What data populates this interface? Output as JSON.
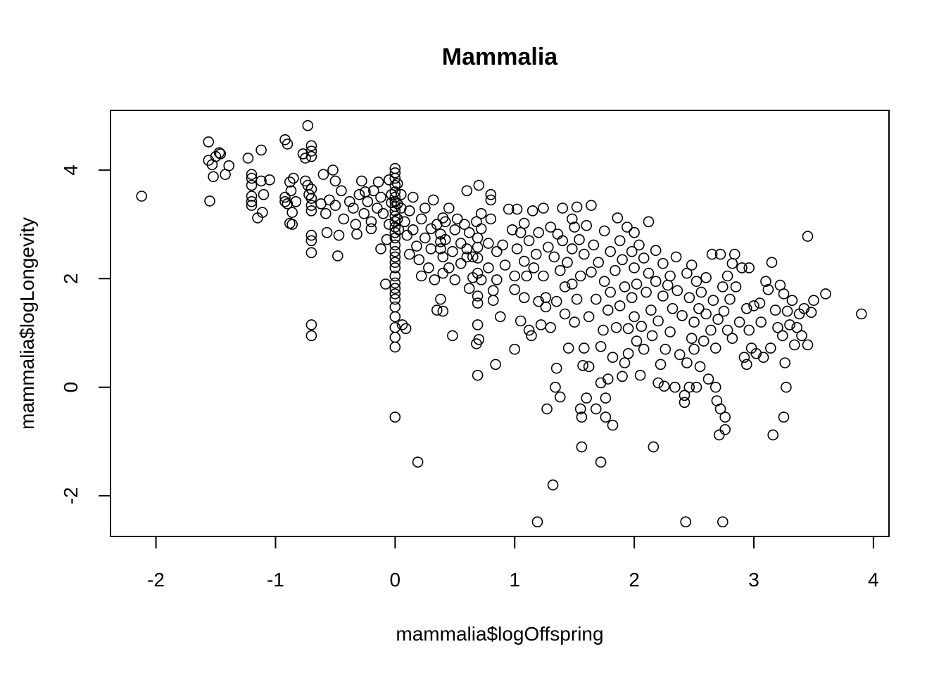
{
  "chart_data": {
    "type": "scatter",
    "title": "Mammalia",
    "xlabel": "mammalia$logOffspring",
    "ylabel": "mammalia$logLongevity",
    "xlim": [
      -2.38,
      4.13
    ],
    "ylim": [
      -2.75,
      5.1
    ],
    "xticks": [
      -2,
      -1,
      0,
      1,
      2,
      3,
      4
    ],
    "yticks": [
      -2,
      0,
      2,
      4
    ],
    "grid": false,
    "legend": "none",
    "marker": "open-circle",
    "color": "#000000",
    "points": [
      [
        -2.12,
        3.52
      ],
      [
        -1.56,
        4.52
      ],
      [
        -1.55,
        3.43
      ],
      [
        -1.56,
        4.18
      ],
      [
        -1.53,
        4.1
      ],
      [
        -1.5,
        4.25
      ],
      [
        -1.47,
        4.32
      ],
      [
        -1.46,
        4.3
      ],
      [
        -1.52,
        3.88
      ],
      [
        -1.42,
        3.92
      ],
      [
        -1.39,
        4.08
      ],
      [
        -1.23,
        4.22
      ],
      [
        -1.2,
        3.92
      ],
      [
        -1.2,
        3.85
      ],
      [
        -1.2,
        3.72
      ],
      [
        -1.2,
        3.52
      ],
      [
        -1.2,
        3.42
      ],
      [
        -1.2,
        3.35
      ],
      [
        -1.15,
        3.12
      ],
      [
        -1.12,
        4.37
      ],
      [
        -1.12,
        3.8
      ],
      [
        -1.1,
        3.55
      ],
      [
        -1.11,
        3.22
      ],
      [
        -1.05,
        3.82
      ],
      [
        -0.92,
        4.56
      ],
      [
        -0.9,
        4.48
      ],
      [
        -0.92,
        3.5
      ],
      [
        -0.92,
        3.42
      ],
      [
        -0.9,
        3.38
      ],
      [
        -0.88,
        3.78
      ],
      [
        -0.87,
        3.62
      ],
      [
        -0.86,
        3.22
      ],
      [
        -0.88,
        3.02
      ],
      [
        -0.86,
        3.0
      ],
      [
        -0.85,
        3.85
      ],
      [
        -0.83,
        3.42
      ],
      [
        -0.77,
        4.3
      ],
      [
        -0.75,
        4.22
      ],
      [
        -0.75,
        3.8
      ],
      [
        -0.73,
        4.82
      ],
      [
        -0.73,
        3.72
      ],
      [
        -0.72,
        3.55
      ],
      [
        -0.7,
        4.45
      ],
      [
        -0.7,
        4.35
      ],
      [
        -0.7,
        4.25
      ],
      [
        -0.7,
        3.65
      ],
      [
        -0.7,
        3.48
      ],
      [
        -0.7,
        3.35
      ],
      [
        -0.7,
        3.25
      ],
      [
        -0.7,
        2.8
      ],
      [
        -0.7,
        2.7
      ],
      [
        -0.7,
        2.48
      ],
      [
        -0.7,
        1.15
      ],
      [
        -0.7,
        0.95
      ],
      [
        -0.62,
        3.38
      ],
      [
        -0.6,
        3.92
      ],
      [
        -0.58,
        3.2
      ],
      [
        -0.57,
        2.85
      ],
      [
        -0.55,
        3.45
      ],
      [
        -0.52,
        4.0
      ],
      [
        -0.5,
        3.8
      ],
      [
        -0.5,
        3.35
      ],
      [
        -0.48,
        2.42
      ],
      [
        -0.47,
        2.8
      ],
      [
        -0.45,
        3.62
      ],
      [
        -0.43,
        3.1
      ],
      [
        -0.38,
        3.42
      ],
      [
        -0.35,
        3.3
      ],
      [
        -0.33,
        3.0
      ],
      [
        -0.32,
        2.82
      ],
      [
        -0.3,
        3.55
      ],
      [
        -0.28,
        3.8
      ],
      [
        -0.26,
        3.2
      ],
      [
        -0.25,
        3.6
      ],
      [
        -0.23,
        3.42
      ],
      [
        -0.2,
        3.05
      ],
      [
        -0.2,
        2.92
      ],
      [
        -0.18,
        3.62
      ],
      [
        -0.15,
        3.3
      ],
      [
        -0.14,
        3.78
      ],
      [
        -0.12,
        3.5
      ],
      [
        -0.12,
        2.55
      ],
      [
        -0.1,
        3.2
      ],
      [
        -0.08,
        1.9
      ],
      [
        -0.07,
        2.72
      ],
      [
        -0.05,
        3.82
      ],
      [
        -0.05,
        3.0
      ],
      [
        -0.03,
        3.4
      ],
      [
        -0.03,
        3.55
      ],
      [
        0.0,
        4.03
      ],
      [
        0.0,
        3.95
      ],
      [
        0.0,
        3.85
      ],
      [
        0.0,
        3.72
      ],
      [
        0.0,
        3.6
      ],
      [
        0.0,
        3.5
      ],
      [
        0.0,
        3.42
      ],
      [
        0.0,
        3.33
      ],
      [
        0.0,
        3.25
      ],
      [
        0.0,
        3.15
      ],
      [
        0.0,
        3.05
      ],
      [
        0.0,
        2.95
      ],
      [
        0.0,
        2.85
      ],
      [
        0.0,
        2.75
      ],
      [
        0.0,
        2.62
      ],
      [
        0.0,
        2.5
      ],
      [
        0.0,
        2.4
      ],
      [
        0.0,
        2.3
      ],
      [
        0.0,
        2.2
      ],
      [
        0.0,
        2.05
      ],
      [
        0.0,
        1.92
      ],
      [
        0.0,
        1.82
      ],
      [
        0.0,
        1.72
      ],
      [
        0.0,
        1.62
      ],
      [
        0.0,
        1.48
      ],
      [
        0.0,
        1.3
      ],
      [
        0.0,
        1.1
      ],
      [
        0.0,
        0.92
      ],
      [
        0.0,
        0.74
      ],
      [
        0.0,
        -0.55
      ],
      [
        0.02,
        3.75
      ],
      [
        0.02,
        3.38
      ],
      [
        0.02,
        3.1
      ],
      [
        0.03,
        2.9
      ],
      [
        0.05,
        3.3
      ],
      [
        0.05,
        3.55
      ],
      [
        0.06,
        1.15
      ],
      [
        0.08,
        3.05
      ],
      [
        0.09,
        1.08
      ],
      [
        0.1,
        2.8
      ],
      [
        0.12,
        3.25
      ],
      [
        0.12,
        2.45
      ],
      [
        0.15,
        3.5
      ],
      [
        0.15,
        2.9
      ],
      [
        0.18,
        2.6
      ],
      [
        0.19,
        -1.38
      ],
      [
        0.2,
        2.35
      ],
      [
        0.22,
        3.1
      ],
      [
        0.22,
        2.05
      ],
      [
        0.25,
        3.3
      ],
      [
        0.25,
        2.75
      ],
      [
        0.28,
        2.2
      ],
      [
        0.3,
        2.92
      ],
      [
        0.3,
        2.55
      ],
      [
        0.32,
        3.45
      ],
      [
        0.33,
        1.98
      ],
      [
        0.35,
        3.0
      ],
      [
        0.35,
        1.42
      ],
      [
        0.38,
        2.82
      ],
      [
        0.38,
        2.68
      ],
      [
        0.38,
        2.55
      ],
      [
        0.38,
        1.62
      ],
      [
        0.4,
        3.12
      ],
      [
        0.4,
        2.4
      ],
      [
        0.4,
        2.1
      ],
      [
        0.4,
        1.4
      ],
      [
        0.42,
        3.05
      ],
      [
        0.42,
        2.72
      ],
      [
        0.45,
        2.2
      ],
      [
        0.45,
        3.3
      ],
      [
        0.48,
        2.5
      ],
      [
        0.48,
        0.95
      ],
      [
        0.5,
        2.9
      ],
      [
        0.5,
        1.98
      ],
      [
        0.52,
        3.1
      ],
      [
        0.55,
        2.65
      ],
      [
        0.55,
        2.28
      ],
      [
        0.58,
        3.0
      ],
      [
        0.6,
        2.55
      ],
      [
        0.6,
        2.4
      ],
      [
        0.6,
        3.62
      ],
      [
        0.62,
        2.85
      ],
      [
        0.62,
        1.82
      ],
      [
        0.65,
        2.4
      ],
      [
        0.65,
        2.02
      ],
      [
        0.68,
        3.05
      ],
      [
        0.68,
        0.8
      ],
      [
        0.69,
        0.22
      ],
      [
        0.69,
        2.75
      ],
      [
        0.69,
        2.58
      ],
      [
        0.69,
        2.38
      ],
      [
        0.69,
        2.1
      ],
      [
        0.69,
        1.68
      ],
      [
        0.69,
        1.55
      ],
      [
        0.69,
        1.15
      ],
      [
        0.7,
        3.72
      ],
      [
        0.7,
        0.88
      ],
      [
        0.72,
        3.2
      ],
      [
        0.72,
        2.92
      ],
      [
        0.72,
        1.98
      ],
      [
        0.78,
        2.65
      ],
      [
        0.78,
        2.2
      ],
      [
        0.8,
        3.55
      ],
      [
        0.8,
        3.45
      ],
      [
        0.8,
        3.1
      ],
      [
        0.82,
        1.78
      ],
      [
        0.82,
        1.6
      ],
      [
        0.84,
        0.42
      ],
      [
        0.85,
        2.5
      ],
      [
        0.85,
        1.98
      ],
      [
        0.88,
        1.3
      ],
      [
        0.9,
        2.62
      ],
      [
        0.92,
        2.25
      ],
      [
        0.95,
        3.28
      ],
      [
        0.98,
        2.9
      ],
      [
        1.0,
        2.05
      ],
      [
        1.0,
        1.8
      ],
      [
        1.0,
        0.7
      ],
      [
        1.02,
        3.28
      ],
      [
        1.02,
        2.55
      ],
      [
        1.05,
        2.85
      ],
      [
        1.05,
        1.22
      ],
      [
        1.08,
        3.02
      ],
      [
        1.08,
        2.32
      ],
      [
        1.08,
        1.65
      ],
      [
        1.1,
        2.05
      ],
      [
        1.12,
        2.7
      ],
      [
        1.12,
        1.05
      ],
      [
        1.14,
        0.95
      ],
      [
        1.15,
        3.25
      ],
      [
        1.16,
        2.2
      ],
      [
        1.18,
        2.45
      ],
      [
        1.19,
        -2.48
      ],
      [
        1.2,
        2.85
      ],
      [
        1.2,
        1.58
      ],
      [
        1.22,
        1.15
      ],
      [
        1.24,
        3.3
      ],
      [
        1.24,
        2.05
      ],
      [
        1.26,
        1.48
      ],
      [
        1.26,
        1.65
      ],
      [
        1.27,
        -0.4
      ],
      [
        1.28,
        2.58
      ],
      [
        1.3,
        2.95
      ],
      [
        1.3,
        1.1
      ],
      [
        1.32,
        -1.8
      ],
      [
        1.33,
        2.4
      ],
      [
        1.34,
        0.0
      ],
      [
        1.35,
        0.35
      ],
      [
        1.35,
        1.58
      ],
      [
        1.36,
        2.82
      ],
      [
        1.38,
        -0.18
      ],
      [
        1.38,
        2.15
      ],
      [
        1.4,
        3.3
      ],
      [
        1.4,
        2.7
      ],
      [
        1.42,
        1.85
      ],
      [
        1.42,
        1.35
      ],
      [
        1.44,
        2.3
      ],
      [
        1.45,
        0.72
      ],
      [
        1.48,
        3.1
      ],
      [
        1.48,
        2.55
      ],
      [
        1.48,
        1.9
      ],
      [
        1.5,
        2.95
      ],
      [
        1.5,
        1.2
      ],
      [
        1.52,
        3.32
      ],
      [
        1.52,
        1.62
      ],
      [
        1.54,
        2.72
      ],
      [
        1.55,
        -0.4
      ],
      [
        1.55,
        2.05
      ],
      [
        1.56,
        -1.1
      ],
      [
        1.56,
        -0.55
      ],
      [
        1.57,
        0.4
      ],
      [
        1.58,
        2.45
      ],
      [
        1.58,
        0.72
      ],
      [
        1.6,
        2.98
      ],
      [
        1.6,
        -0.2
      ],
      [
        1.62,
        0.38
      ],
      [
        1.62,
        1.3
      ],
      [
        1.64,
        3.35
      ],
      [
        1.64,
        2.12
      ],
      [
        1.66,
        2.62
      ],
      [
        1.68,
        -0.4
      ],
      [
        1.68,
        1.62
      ],
      [
        1.7,
        2.3
      ],
      [
        1.72,
        -1.38
      ],
      [
        1.72,
        0.08
      ],
      [
        1.72,
        0.75
      ],
      [
        1.74,
        1.05
      ],
      [
        1.75,
        2.88
      ],
      [
        1.75,
        1.95
      ],
      [
        1.76,
        -0.55
      ],
      [
        1.76,
        -0.2
      ],
      [
        1.78,
        0.15
      ],
      [
        1.78,
        1.42
      ],
      [
        1.8,
        2.5
      ],
      [
        1.8,
        1.75
      ],
      [
        1.82,
        -0.7
      ],
      [
        1.82,
        0.55
      ],
      [
        1.84,
        2.15
      ],
      [
        1.85,
        1.1
      ],
      [
        1.86,
        3.12
      ],
      [
        1.88,
        2.7
      ],
      [
        1.88,
        1.5
      ],
      [
        1.9,
        0.2
      ],
      [
        1.9,
        2.35
      ],
      [
        1.92,
        1.85
      ],
      [
        1.92,
        0.45
      ],
      [
        1.94,
        2.95
      ],
      [
        1.95,
        1.08
      ],
      [
        1.95,
        0.62
      ],
      [
        1.98,
        2.5
      ],
      [
        1.98,
        1.65
      ],
      [
        2.0,
        2.85
      ],
      [
        2.0,
        2.2
      ],
      [
        2.0,
        1.3
      ],
      [
        2.02,
        1.9
      ],
      [
        2.02,
        0.85
      ],
      [
        2.04,
        2.62
      ],
      [
        2.05,
        0.22
      ],
      [
        2.06,
        1.12
      ],
      [
        2.08,
        2.38
      ],
      [
        2.08,
        0.7
      ],
      [
        2.1,
        1.75
      ],
      [
        2.12,
        3.05
      ],
      [
        2.12,
        2.1
      ],
      [
        2.14,
        1.42
      ],
      [
        2.15,
        0.95
      ],
      [
        2.16,
        -1.1
      ],
      [
        2.18,
        2.52
      ],
      [
        2.18,
        1.95
      ],
      [
        2.2,
        1.22
      ],
      [
        2.2,
        0.08
      ],
      [
        2.22,
        0.42
      ],
      [
        2.24,
        2.28
      ],
      [
        2.24,
        1.68
      ],
      [
        2.25,
        0.02
      ],
      [
        2.26,
        0.7
      ],
      [
        2.28,
        1.88
      ],
      [
        2.3,
        2.05
      ],
      [
        2.3,
        1.02
      ],
      [
        2.32,
        1.45
      ],
      [
        2.34,
        0.0
      ],
      [
        2.35,
        2.4
      ],
      [
        2.36,
        1.78
      ],
      [
        2.38,
        0.6
      ],
      [
        2.4,
        1.32
      ],
      [
        2.42,
        -0.28
      ],
      [
        2.42,
        -0.15
      ],
      [
        2.43,
        -2.48
      ],
      [
        2.44,
        2.1
      ],
      [
        2.44,
        0.45
      ],
      [
        2.46,
        0.0
      ],
      [
        2.46,
        1.65
      ],
      [
        2.48,
        0.9
      ],
      [
        2.48,
        2.25
      ],
      [
        2.5,
        1.2
      ],
      [
        2.5,
        0.7
      ],
      [
        2.52,
        1.95
      ],
      [
        2.52,
        0.0
      ],
      [
        2.54,
        1.45
      ],
      [
        2.55,
        0.38
      ],
      [
        2.56,
        1.75
      ],
      [
        2.58,
        0.85
      ],
      [
        2.6,
        2.02
      ],
      [
        2.6,
        1.35
      ],
      [
        2.62,
        0.15
      ],
      [
        2.64,
        1.05
      ],
      [
        2.65,
        2.45
      ],
      [
        2.66,
        1.6
      ],
      [
        2.68,
        0.72
      ],
      [
        2.68,
        0.0
      ],
      [
        2.69,
        -0.25
      ],
      [
        2.7,
        1.25
      ],
      [
        2.71,
        -0.88
      ],
      [
        2.72,
        2.45
      ],
      [
        2.72,
        -0.4
      ],
      [
        2.74,
        -2.48
      ],
      [
        2.74,
        1.85
      ],
      [
        2.75,
        1.4
      ],
      [
        2.76,
        -0.55
      ],
      [
        2.76,
        -0.78
      ],
      [
        2.78,
        2.05
      ],
      [
        2.78,
        1.05
      ],
      [
        2.8,
        1.62
      ],
      [
        2.82,
        2.28
      ],
      [
        2.82,
        0.9
      ],
      [
        2.84,
        2.45
      ],
      [
        2.85,
        1.85
      ],
      [
        2.88,
        1.2
      ],
      [
        2.9,
        2.2
      ],
      [
        2.92,
        0.55
      ],
      [
        2.94,
        1.45
      ],
      [
        2.94,
        0.42
      ],
      [
        2.96,
        2.2
      ],
      [
        2.96,
        1.05
      ],
      [
        2.98,
        0.72
      ],
      [
        3.0,
        1.5
      ],
      [
        3.02,
        0.62
      ],
      [
        3.05,
        1.55
      ],
      [
        3.06,
        1.2
      ],
      [
        3.08,
        0.55
      ],
      [
        3.1,
        1.95
      ],
      [
        3.12,
        1.8
      ],
      [
        3.14,
        0.72
      ],
      [
        3.15,
        2.3
      ],
      [
        3.16,
        -0.88
      ],
      [
        3.18,
        1.42
      ],
      [
        3.2,
        1.1
      ],
      [
        3.22,
        1.88
      ],
      [
        3.24,
        0.95
      ],
      [
        3.25,
        1.72
      ],
      [
        3.25,
        -0.55
      ],
      [
        3.26,
        0.45
      ],
      [
        3.27,
        0.0
      ],
      [
        3.28,
        1.4
      ],
      [
        3.3,
        1.15
      ],
      [
        3.32,
        1.6
      ],
      [
        3.34,
        0.78
      ],
      [
        3.36,
        1.1
      ],
      [
        3.38,
        1.35
      ],
      [
        3.4,
        0.95
      ],
      [
        3.42,
        1.45
      ],
      [
        3.45,
        2.78
      ],
      [
        3.45,
        0.78
      ],
      [
        3.48,
        1.38
      ],
      [
        3.5,
        1.6
      ],
      [
        3.6,
        1.72
      ],
      [
        3.9,
        1.35
      ]
    ]
  }
}
